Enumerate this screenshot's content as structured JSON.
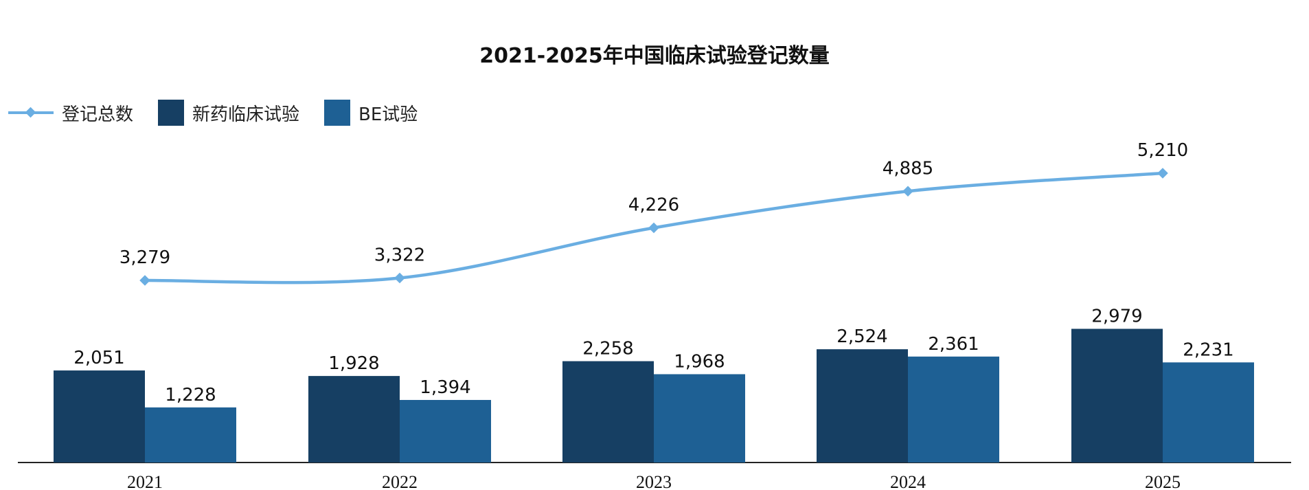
{
  "chart_data": {
    "type": "bar",
    "title": "2021-2025年中国临床试验登记数量",
    "categories": [
      "2021",
      "2022",
      "2023",
      "2024",
      "2025"
    ],
    "series": [
      {
        "name": "新药临床试验",
        "type": "bar",
        "color": "#163f63",
        "values": [
          2051,
          1928,
          2258,
          2524,
          2979
        ]
      },
      {
        "name": "BE试验",
        "type": "bar",
        "color": "#1e6094",
        "values": [
          1228,
          1394,
          1968,
          2361,
          2231
        ]
      },
      {
        "name": "登记总数",
        "type": "line",
        "color": "#6aaee2",
        "values": [
          3279,
          3322,
          4226,
          4885,
          5210
        ]
      }
    ],
    "legend": {
      "position": "top-left",
      "order": [
        "登记总数",
        "新药临床试验",
        "BE试验"
      ]
    },
    "grid": false,
    "value_labels": true
  }
}
